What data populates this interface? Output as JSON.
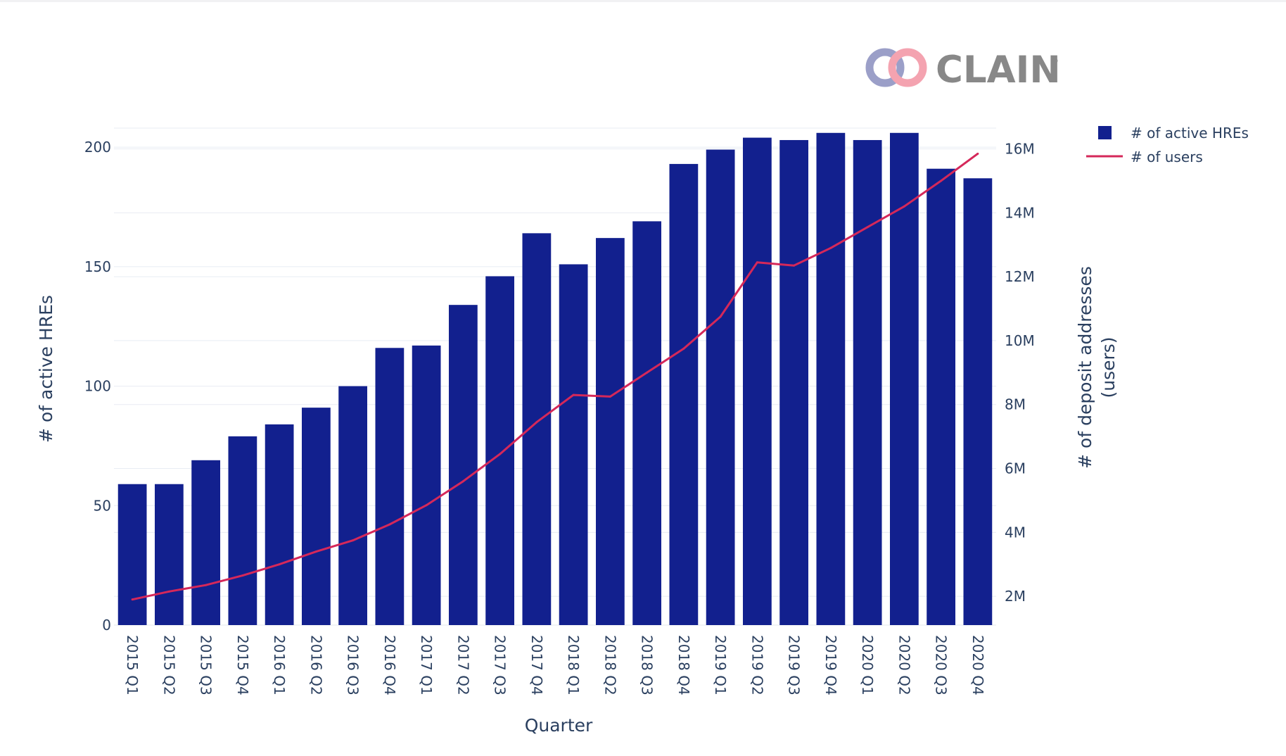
{
  "logo": {
    "text": "CLAIN",
    "mark": "®",
    "colors": {
      "ring_left": "#9b9fc8",
      "ring_right": "#f4a3b0",
      "text": "#888888"
    }
  },
  "colors": {
    "bar": "#12208e",
    "line": "#d5285a",
    "grid": "#e8ecf3",
    "text": "#2a3f5f"
  },
  "chart_data": {
    "type": "bar",
    "categories": [
      "2015 Q1",
      "2015 Q2",
      "2015 Q3",
      "2015 Q4",
      "2016 Q1",
      "2016 Q2",
      "2016 Q3",
      "2016 Q4",
      "2017 Q1",
      "2017 Q2",
      "2017 Q3",
      "2017 Q4",
      "2018 Q1",
      "2018 Q2",
      "2018 Q3",
      "2018 Q4",
      "2019 Q1",
      "2019 Q2",
      "2019 Q3",
      "2019 Q4",
      "2020 Q1",
      "2020 Q2",
      "2020 Q3",
      "2020 Q4"
    ],
    "series": [
      {
        "name": "# of active HREs",
        "type": "bar",
        "axis": "left",
        "values": [
          59,
          59,
          69,
          79,
          84,
          91,
          100,
          116,
          117,
          134,
          146,
          164,
          151,
          162,
          169,
          193,
          199,
          204,
          203,
          206,
          203,
          206,
          191,
          187
        ]
      },
      {
        "name": "# of users",
        "type": "line",
        "axis": "right",
        "values": [
          1.9,
          2.15,
          2.35,
          2.65,
          3.0,
          3.4,
          3.75,
          4.25,
          4.85,
          5.6,
          6.45,
          7.45,
          8.3,
          8.25,
          9.0,
          9.75,
          10.75,
          12.45,
          12.35,
          12.9,
          13.55,
          14.2,
          15.0,
          15.85
        ]
      }
    ],
    "xlabel": "Quarter",
    "ylabel": "# of active HREs",
    "y2label": "# of deposit addresses (users)",
    "y2label_lines": [
      "# of deposit addresses",
      "(users)"
    ],
    "ylim": [
      0,
      208
    ],
    "y2lim": [
      1.1,
      16.65
    ],
    "yticks": [
      0,
      50,
      100,
      150,
      200
    ],
    "yticklabels": [
      "0",
      "50",
      "100",
      "150",
      "200"
    ],
    "y2ticks": [
      2,
      4,
      6,
      8,
      10,
      12,
      14,
      16
    ],
    "y2ticklabels": [
      "2M",
      "4M",
      "6M",
      "8M",
      "10M",
      "12M",
      "14M",
      "16M"
    ],
    "legend_position": "top-right",
    "grid": true
  }
}
